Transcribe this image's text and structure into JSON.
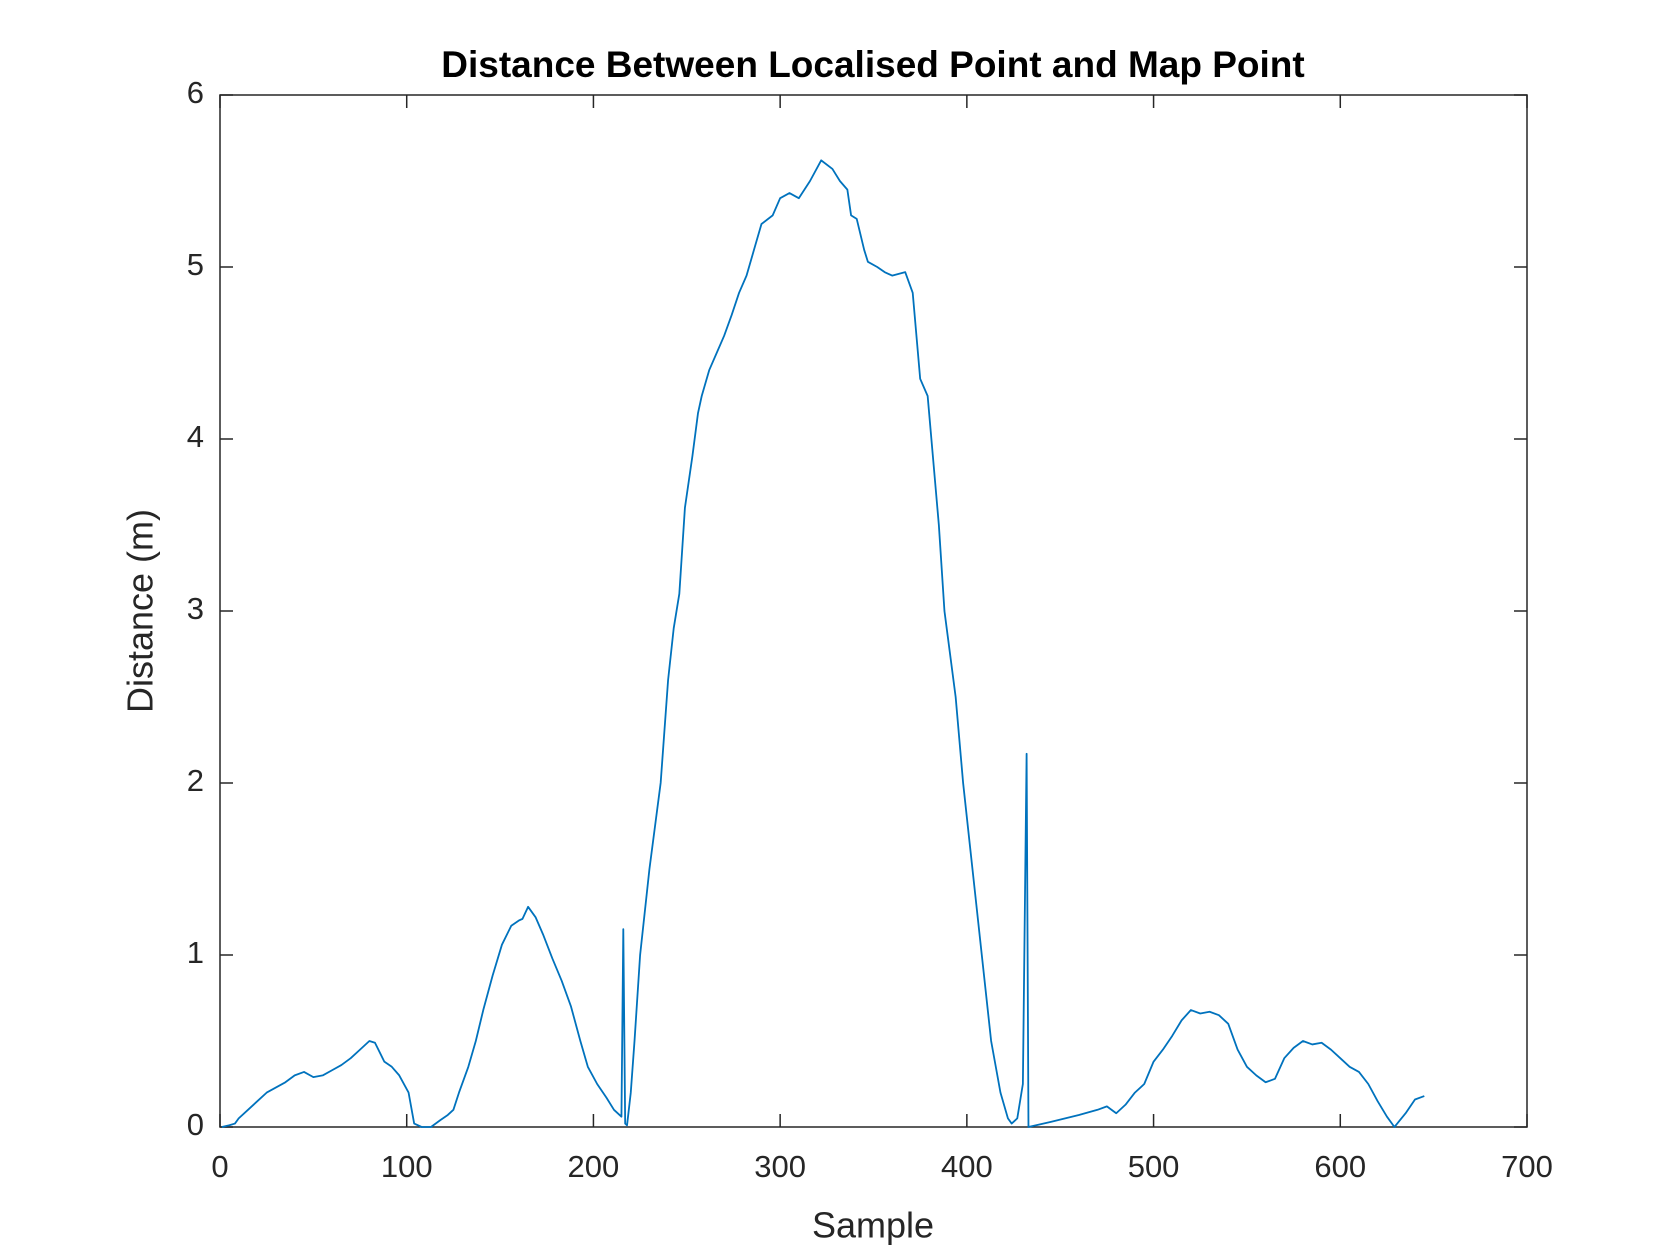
{
  "chart_data": {
    "type": "line",
    "title": "Distance Between Localised Point and Map Point",
    "x_label": "Sample",
    "y_label": "Distance (m)",
    "xlim": [
      0,
      700
    ],
    "ylim": [
      0,
      6
    ],
    "xticks": [
      0,
      100,
      200,
      300,
      400,
      500,
      600,
      700
    ],
    "yticks": [
      0,
      1,
      2,
      3,
      4,
      5,
      6
    ],
    "x": [
      1,
      5,
      8,
      10,
      15,
      20,
      25,
      30,
      35,
      40,
      45,
      50,
      55,
      60,
      65,
      70,
      75,
      80,
      83,
      88,
      92,
      96,
      101,
      104,
      108,
      113,
      118,
      122,
      125,
      128,
      133,
      137,
      141,
      146,
      151,
      156,
      160,
      162,
      165,
      169,
      173,
      178,
      183,
      188,
      193,
      197,
      202,
      207,
      211,
      215,
      216,
      217,
      218,
      220,
      222,
      225,
      230,
      236,
      240,
      243,
      246,
      249,
      253,
      256,
      258,
      262,
      266,
      270,
      274,
      278,
      282,
      286,
      290,
      296,
      300,
      305,
      310,
      316,
      322,
      328,
      332,
      336,
      338,
      341,
      345,
      347,
      352,
      356,
      360,
      367,
      371,
      375,
      379,
      385,
      388,
      394,
      398,
      403,
      408,
      413,
      418,
      422,
      424,
      427,
      430,
      432,
      433,
      445,
      460,
      470,
      475,
      480,
      485,
      490,
      495,
      500,
      505,
      510,
      515,
      520,
      525,
      530,
      535,
      540,
      545,
      550,
      555,
      560,
      565,
      570,
      575,
      580,
      585,
      590,
      595,
      600,
      605,
      610,
      615,
      620,
      625,
      629,
      635,
      640,
      645
    ],
    "series": [
      {
        "name": "Distance",
        "color": "#0072bd",
        "values": [
          0,
          0.01,
          0.02,
          0.05,
          0.1,
          0.15,
          0.2,
          0.23,
          0.26,
          0.3,
          0.32,
          0.29,
          0.3,
          0.33,
          0.36,
          0.4,
          0.45,
          0.5,
          0.49,
          0.38,
          0.35,
          0.3,
          0.2,
          0.02,
          0,
          0,
          0.04,
          0.07,
          0.1,
          0.2,
          0.35,
          0.5,
          0.68,
          0.88,
          1.06,
          1.17,
          1.2,
          1.21,
          1.28,
          1.22,
          1.12,
          0.98,
          0.85,
          0.7,
          0.5,
          0.35,
          0.25,
          0.17,
          0.1,
          0.06,
          1.15,
          0.02,
          0.01,
          0.2,
          0.5,
          1.0,
          1.5,
          2.0,
          2.6,
          2.9,
          3.1,
          3.6,
          3.9,
          4.15,
          4.25,
          4.4,
          4.5,
          4.6,
          4.72,
          4.85,
          4.95,
          5.1,
          5.25,
          5.3,
          5.4,
          5.43,
          5.4,
          5.5,
          5.62,
          5.57,
          5.5,
          5.45,
          5.3,
          5.28,
          5.1,
          5.03,
          5.0,
          4.97,
          4.95,
          4.97,
          4.85,
          4.35,
          4.25,
          3.5,
          3.0,
          2.5,
          2.0,
          1.5,
          1.0,
          0.5,
          0.2,
          0.05,
          0.02,
          0.05,
          0.25,
          2.17,
          0,
          0.03,
          0.07,
          0.1,
          0.12,
          0.08,
          0.13,
          0.2,
          0.25,
          0.38,
          0.45,
          0.53,
          0.62,
          0.68,
          0.66,
          0.67,
          0.65,
          0.6,
          0.45,
          0.35,
          0.3,
          0.26,
          0.28,
          0.4,
          0.46,
          0.5,
          0.48,
          0.49,
          0.45,
          0.4,
          0.35,
          0.32,
          0.25,
          0.15,
          0.06,
          0,
          0.08,
          0.16,
          0.18
        ]
      }
    ]
  }
}
